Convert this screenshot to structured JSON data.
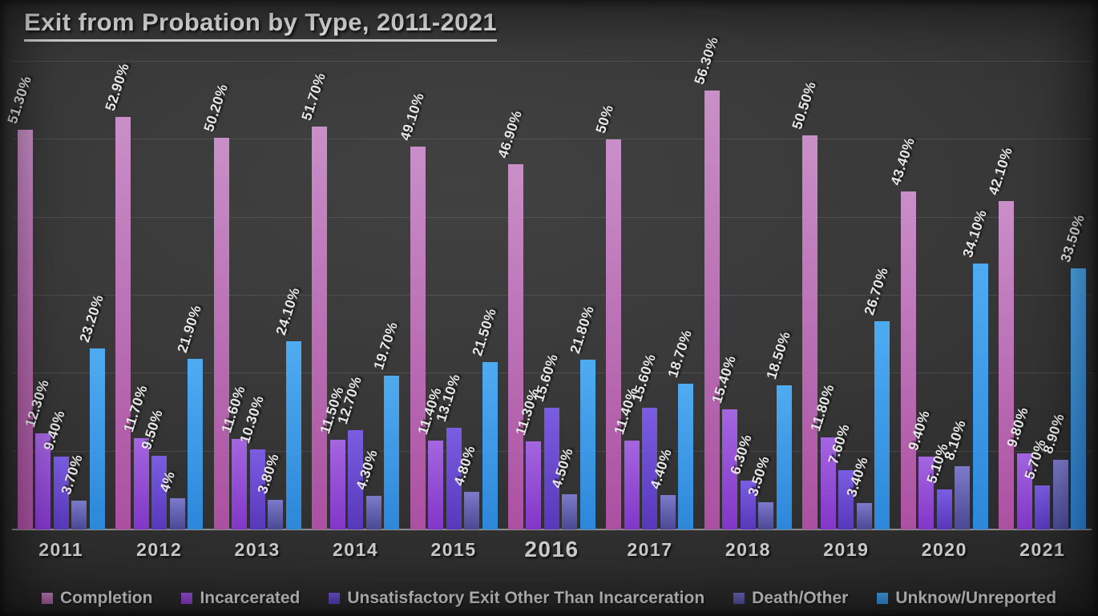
{
  "title": "Exit from Probation by Type, 2011-2021",
  "chart_data": {
    "type": "bar",
    "title": "Exit from Probation by Type, 2011-2021",
    "categories": [
      "2011",
      "2012",
      "2013",
      "2014",
      "2015",
      "2016",
      "2017",
      "2018",
      "2019",
      "2020",
      "2021"
    ],
    "emphasized_category": "2016",
    "series": [
      {
        "name": "Completion",
        "values": [
          51.3,
          52.9,
          50.2,
          51.7,
          49.1,
          46.9,
          50,
          56.3,
          50.5,
          43.4,
          42.1
        ],
        "labels": [
          "51.30%",
          "52.90%",
          "50.20%",
          "51.70%",
          "49.10%",
          "46.90%",
          "50%",
          "56.30%",
          "50.50%",
          "43.40%",
          "42.10%"
        ],
        "color_top": "#c98fc8",
        "color_bottom": "#ab50a1",
        "legend_color_top": "#c484c0",
        "legend_color_bottom": "#b060a8"
      },
      {
        "name": "Incarcerated",
        "values": [
          12.3,
          11.7,
          11.6,
          11.5,
          11.4,
          11.3,
          11.4,
          15.4,
          11.8,
          9.4,
          9.8
        ],
        "labels": [
          "12.30%",
          "11.70%",
          "11.60%",
          "11.50%",
          "11.40%",
          "11.30%",
          "11.40%",
          "15.40%",
          "11.80%",
          "9.40%",
          "9.80%"
        ],
        "color_top": "#a466e0",
        "color_bottom": "#8236c8",
        "legend_color_top": "#9d55da",
        "legend_color_bottom": "#8c40ce"
      },
      {
        "name": "Unsatisfactory Exit Other Than Incarceration",
        "values": [
          9.4,
          9.5,
          10.3,
          12.7,
          13.1,
          15.6,
          15.6,
          6.3,
          7.6,
          5.1,
          5.7
        ],
        "labels": [
          "9.40%",
          "9.50%",
          "10.30%",
          "12.70%",
          "13.10%",
          "15.60%",
          "15.60%",
          "6.30%",
          "7.60%",
          "5.10%",
          "5.70%"
        ],
        "color_top": "#7b5de2",
        "color_bottom": "#5738bb",
        "legend_color_top": "#7157dc",
        "legend_color_bottom": "#5d42c4"
      },
      {
        "name": "Death/Other",
        "values": [
          3.7,
          4,
          3.8,
          4.3,
          4.8,
          4.5,
          4.4,
          3.5,
          3.4,
          8.1,
          8.9
        ],
        "labels": [
          "3.70%",
          "4%",
          "3.80%",
          "4.30%",
          "4.80%",
          "4.50%",
          "4.40%",
          "3.50%",
          "3.40%",
          "8.10%",
          "8.90%"
        ],
        "color_top": "#7c7aca",
        "color_bottom": "#4b4994",
        "legend_color_top": "#6b68bc",
        "legend_color_bottom": "#5754a4"
      },
      {
        "name": "Unknow/Unreported",
        "values": [
          23.2,
          21.9,
          24.1,
          19.7,
          21.5,
          21.8,
          18.7,
          18.5,
          26.7,
          34.1,
          33.5
        ],
        "labels": [
          "23.20%",
          "21.90%",
          "24.10%",
          "19.70%",
          "21.50%",
          "21.80%",
          "18.70%",
          "18.50%",
          "26.70%",
          "34.10%",
          "33.50%"
        ],
        "color_top": "#4fabf1",
        "color_bottom": "#2d87da",
        "legend_color_top": "#44a3ee",
        "legend_color_bottom": "#3392e2"
      }
    ],
    "ylim": [
      0,
      60
    ],
    "gridline_step": 10,
    "y_axis_labels_visible": false,
    "legend_position": "bottom",
    "grid": true
  }
}
